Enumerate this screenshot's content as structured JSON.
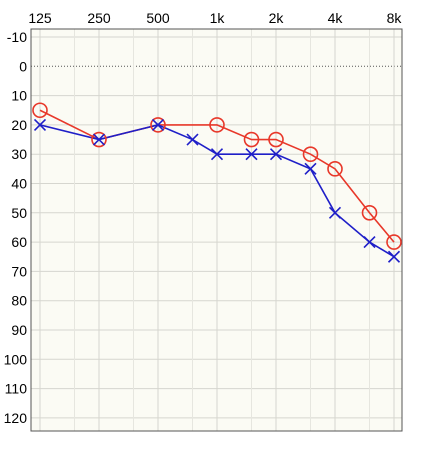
{
  "chart_data": {
    "type": "line",
    "x_ticks": [
      "125",
      "250",
      "500",
      "1k",
      "2k",
      "4k",
      "8k"
    ],
    "x_tick_values": [
      125,
      250,
      500,
      1000,
      2000,
      4000,
      8000
    ],
    "x_scale": "log",
    "y_ticks": [
      "-10",
      "0",
      "10",
      "20",
      "30",
      "40",
      "50",
      "60",
      "70",
      "80",
      "90",
      "100",
      "110",
      "120"
    ],
    "y_tick_values": [
      -10,
      0,
      10,
      20,
      30,
      40,
      50,
      60,
      70,
      80,
      90,
      100,
      110,
      120
    ],
    "ylim": [
      -10,
      120
    ],
    "y_inverted": true,
    "reference_line_y": 0,
    "grid": true,
    "series": [
      {
        "marker": "circle",
        "color": "#e8382a",
        "points": [
          {
            "x": 125,
            "y": 15
          },
          {
            "x": 250,
            "y": 25
          },
          {
            "x": 500,
            "y": 20
          },
          {
            "x": 1000,
            "y": 20
          },
          {
            "x": 1500,
            "y": 25
          },
          {
            "x": 2000,
            "y": 25
          },
          {
            "x": 3000,
            "y": 30
          },
          {
            "x": 4000,
            "y": 35
          },
          {
            "x": 6000,
            "y": 50
          },
          {
            "x": 8000,
            "y": 60
          }
        ]
      },
      {
        "marker": "x",
        "color": "#1f1fc8",
        "points": [
          {
            "x": 125,
            "y": 20
          },
          {
            "x": 250,
            "y": 25
          },
          {
            "x": 500,
            "y": 20
          },
          {
            "x": 750,
            "y": 25
          },
          {
            "x": 1000,
            "y": 30
          },
          {
            "x": 1500,
            "y": 30
          },
          {
            "x": 2000,
            "y": 30
          },
          {
            "x": 3000,
            "y": 35
          },
          {
            "x": 4000,
            "y": 50
          },
          {
            "x": 6000,
            "y": 60
          },
          {
            "x": 8000,
            "y": 65
          }
        ]
      }
    ]
  }
}
